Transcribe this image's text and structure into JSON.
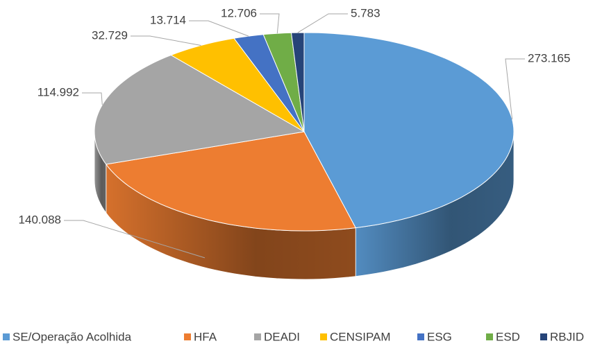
{
  "chart_data": {
    "type": "pie",
    "categories": [
      "SE/Operação Acolhida",
      "HFA",
      "DEADI",
      "CENSIPAM",
      "ESG",
      "ESD",
      "RBJID"
    ],
    "values": [
      273165,
      140088,
      114992,
      32729,
      13714,
      12706,
      5783
    ],
    "value_labels": [
      "273.165",
      "140.088",
      "114.992",
      "32.729",
      "13.714",
      "12.706",
      "5.783"
    ],
    "colors": [
      "#5b9bd5",
      "#ed7d31",
      "#a5a5a5",
      "#ffc000",
      "#4472c4",
      "#70ad47",
      "#264478"
    ],
    "legend": "bottom"
  }
}
